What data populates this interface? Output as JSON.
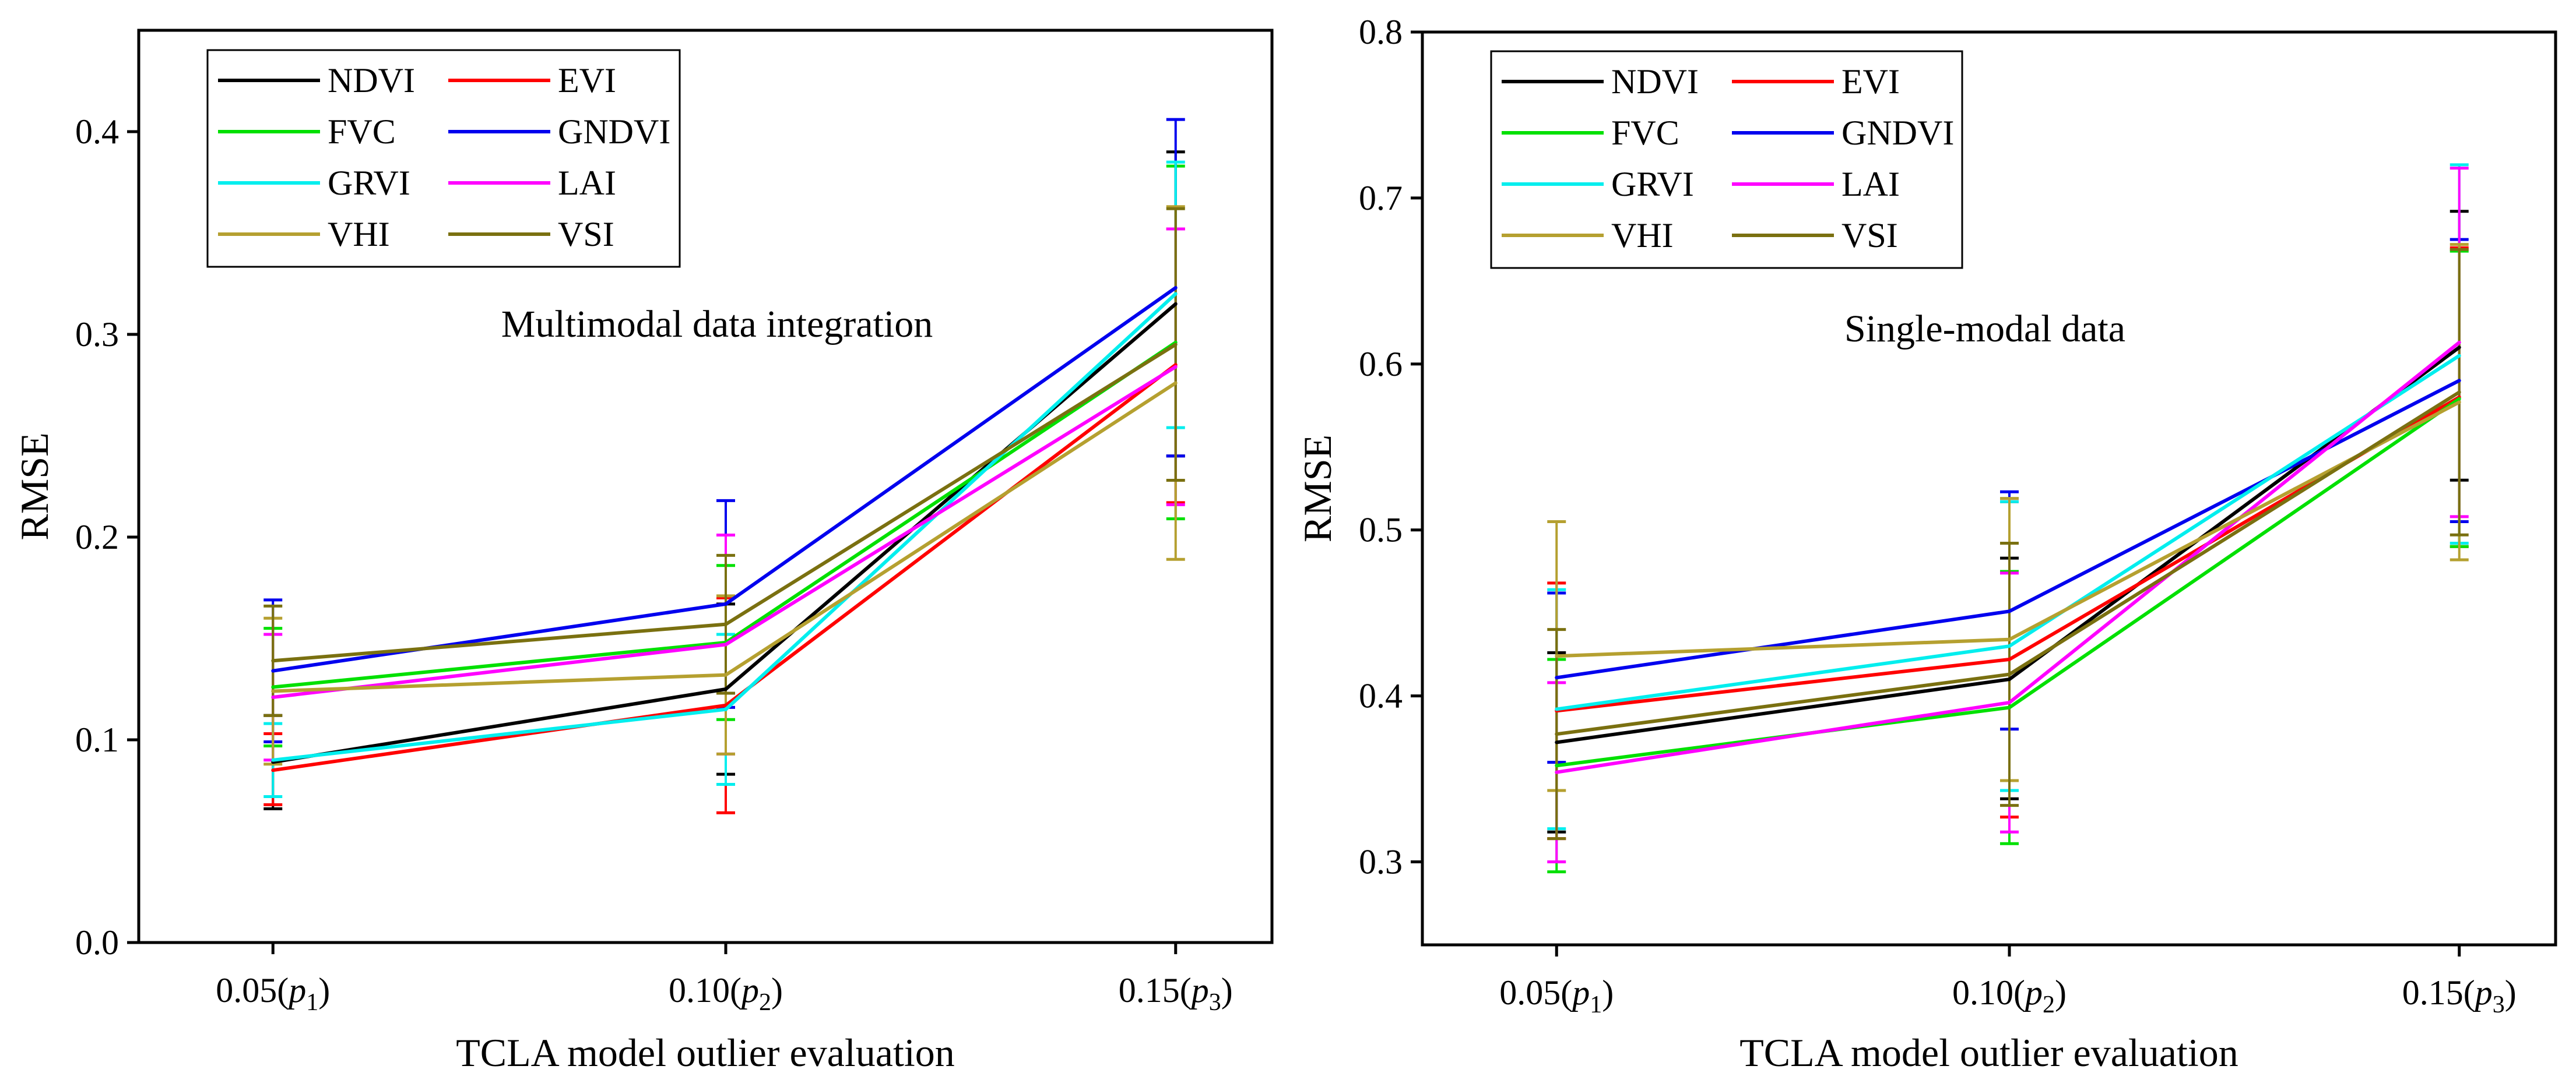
{
  "chart_data": [
    {
      "type": "line",
      "title": "Multimodal data integration",
      "xlabel": "TCLA model outlier evaluation",
      "ylabel": "RMSE",
      "ylim": [
        0.0,
        0.45
      ],
      "yticks": [
        "0.0",
        "0.1",
        "0.2",
        "0.3",
        "0.4"
      ],
      "ytick_values": [
        0.0,
        0.1,
        0.2,
        0.3,
        0.4
      ],
      "xticks": [
        {
          "value": "0.05",
          "sym": "p",
          "sub": "1"
        },
        {
          "value": "0.10",
          "sym": "p",
          "sub": "2"
        },
        {
          "value": "0.15",
          "sym": "p",
          "sub": "3"
        }
      ],
      "legend_position": "top-left",
      "series": [
        {
          "name": "NDVI",
          "color": "#000000",
          "values": [
            0.089,
            0.125,
            0.315
          ],
          "err_low": [
            0.066,
            0.083,
            0.24
          ],
          "err_high": [
            0.112,
            0.167,
            0.39
          ]
        },
        {
          "name": "EVI",
          "color": "#ff0000",
          "values": [
            0.085,
            0.117,
            0.285
          ],
          "err_low": [
            0.068,
            0.064,
            0.217
          ],
          "err_high": [
            0.103,
            0.17,
            0.352
          ]
        },
        {
          "name": "FVC",
          "color": "#00e000",
          "values": [
            0.126,
            0.148,
            0.296
          ],
          "err_low": [
            0.097,
            0.11,
            0.209
          ],
          "err_high": [
            0.155,
            0.186,
            0.383
          ]
        },
        {
          "name": "GNDVI",
          "color": "#0000ee",
          "values": [
            0.134,
            0.167,
            0.323
          ],
          "err_low": [
            0.099,
            0.116,
            0.24
          ],
          "err_high": [
            0.169,
            0.218,
            0.406
          ]
        },
        {
          "name": "GRVI",
          "color": "#00eeee",
          "values": [
            0.09,
            0.115,
            0.32
          ],
          "err_low": [
            0.072,
            0.078,
            0.254
          ],
          "err_high": [
            0.108,
            0.152,
            0.385
          ]
        },
        {
          "name": "LAI",
          "color": "#ff00ff",
          "values": [
            0.121,
            0.147,
            0.284
          ],
          "err_low": [
            0.09,
            0.093,
            0.216
          ],
          "err_high": [
            0.152,
            0.201,
            0.352
          ]
        },
        {
          "name": "VHI",
          "color": "#b5a030",
          "values": [
            0.124,
            0.132,
            0.276
          ],
          "err_low": [
            0.088,
            0.093,
            0.189
          ],
          "err_high": [
            0.16,
            0.171,
            0.363
          ]
        },
        {
          "name": "VSI",
          "color": "#7a7010",
          "values": [
            0.139,
            0.157,
            0.295
          ],
          "err_low": [
            0.112,
            0.123,
            0.228
          ],
          "err_high": [
            0.166,
            0.191,
            0.362
          ]
        }
      ]
    },
    {
      "type": "line",
      "title": "Single-modal data",
      "xlabel": "TCLA model outlier evaluation",
      "ylabel": "RMSE",
      "ylim": [
        0.25,
        0.8
      ],
      "yticks": [
        "0.3",
        "0.4",
        "0.5",
        "0.6",
        "0.7",
        "0.8"
      ],
      "ytick_values": [
        0.3,
        0.4,
        0.5,
        0.6,
        0.7,
        0.8
      ],
      "xticks": [
        {
          "value": "0.05",
          "sym": "p",
          "sub": "1"
        },
        {
          "value": "0.10",
          "sym": "p",
          "sub": "2"
        },
        {
          "value": "0.15",
          "sym": "p",
          "sub": "3"
        }
      ],
      "legend_position": "top-left",
      "series": [
        {
          "name": "NDVI",
          "color": "#000000",
          "values": [
            0.372,
            0.41,
            0.61
          ],
          "err_low": [
            0.318,
            0.338,
            0.53
          ],
          "err_high": [
            0.426,
            0.483,
            0.692
          ]
        },
        {
          "name": "EVI",
          "color": "#ff0000",
          "values": [
            0.391,
            0.422,
            0.58
          ],
          "err_low": [
            0.314,
            0.327,
            0.49
          ],
          "err_high": [
            0.468,
            0.517,
            0.67
          ]
        },
        {
          "name": "FVC",
          "color": "#00e000",
          "values": [
            0.358,
            0.393,
            0.579
          ],
          "err_low": [
            0.294,
            0.311,
            0.49
          ],
          "err_high": [
            0.422,
            0.475,
            0.668
          ]
        },
        {
          "name": "GNDVI",
          "color": "#0000ee",
          "values": [
            0.411,
            0.451,
            0.59
          ],
          "err_low": [
            0.36,
            0.38,
            0.505
          ],
          "err_high": [
            0.462,
            0.523,
            0.675
          ]
        },
        {
          "name": "GRVI",
          "color": "#00eeee",
          "values": [
            0.392,
            0.43,
            0.605
          ],
          "err_low": [
            0.32,
            0.343,
            0.492
          ],
          "err_high": [
            0.464,
            0.517,
            0.72
          ]
        },
        {
          "name": "LAI",
          "color": "#ff00ff",
          "values": [
            0.354,
            0.396,
            0.613
          ],
          "err_low": [
            0.3,
            0.318,
            0.508
          ],
          "err_high": [
            0.408,
            0.474,
            0.718
          ]
        },
        {
          "name": "VHI",
          "color": "#b5a030",
          "values": [
            0.424,
            0.434,
            0.577
          ],
          "err_low": [
            0.343,
            0.349,
            0.482
          ],
          "err_high": [
            0.505,
            0.519,
            0.672
          ]
        },
        {
          "name": "VSI",
          "color": "#7a7010",
          "values": [
            0.377,
            0.413,
            0.583
          ],
          "err_low": [
            0.314,
            0.334,
            0.497
          ],
          "err_high": [
            0.44,
            0.492,
            0.669
          ]
        }
      ]
    }
  ]
}
